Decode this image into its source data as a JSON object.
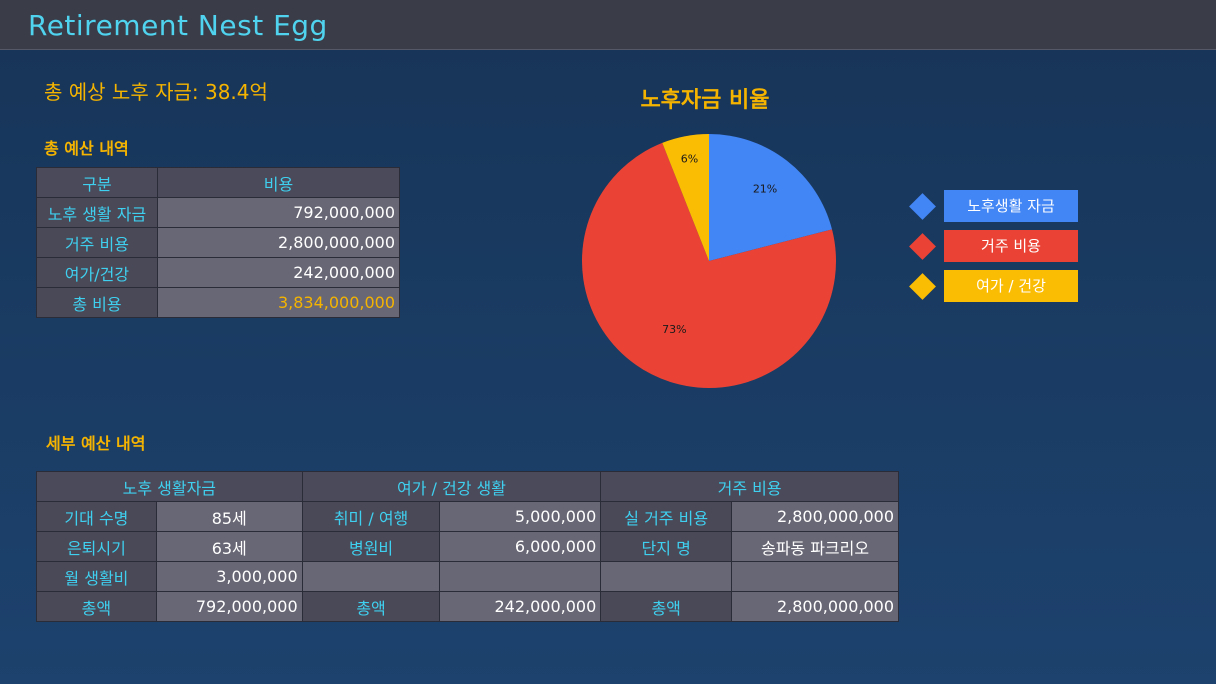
{
  "app": {
    "title": "Retirement Nest Egg"
  },
  "headline": "총 예상 노후 자금: 38.4억",
  "summary": {
    "label": "총 예산 내역",
    "headers": [
      "구분",
      "비용"
    ],
    "rows": [
      [
        "노후 생활 자금",
        "792,000,000"
      ],
      [
        "거주 비용",
        "2,800,000,000"
      ],
      [
        "여가/건강",
        "242,000,000"
      ],
      [
        "총 비용",
        "3,834,000,000"
      ]
    ]
  },
  "detail": {
    "label": "세부 예산 내역",
    "groups": [
      "노후 생활자금",
      "여가 / 건강 생활",
      "거주 비용"
    ],
    "rows": [
      [
        "기대 수명",
        "85세",
        "취미 / 여행",
        "5,000,000",
        "실 거주 비용",
        "2,800,000,000"
      ],
      [
        "은퇴시기",
        "63세",
        "병원비",
        "6,000,000",
        "단지 명",
        "송파동 파크리오"
      ],
      [
        "월 생활비",
        "3,000,000",
        "",
        "",
        "",
        ""
      ],
      [
        "총액",
        "792,000,000",
        "총액",
        "242,000,000",
        "총액",
        "2,800,000,000"
      ]
    ]
  },
  "chart_data": {
    "type": "pie",
    "title": "노후자금 비율",
    "labels": [
      "노후생활 자금",
      "거주 비용",
      "여가 / 건강"
    ],
    "values": [
      21,
      73,
      6
    ],
    "value_labels": [
      "21%",
      "73%",
      "6%"
    ],
    "colors": [
      "#4285f4",
      "#ea4335",
      "#fbbc04"
    ],
    "legend": "right"
  }
}
